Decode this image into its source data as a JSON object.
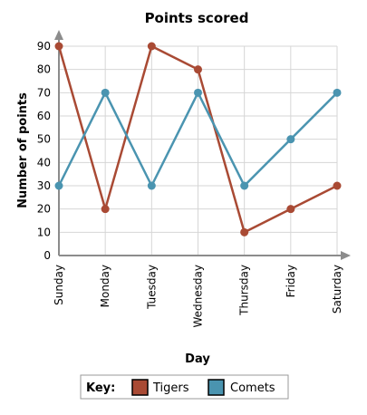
{
  "chart_data": {
    "type": "line",
    "title": "Points scored",
    "xlabel": "Day",
    "ylabel": "Number of points",
    "categories": [
      "Sunday",
      "Monday",
      "Tuesday",
      "Wednesday",
      "Thursday",
      "Friday",
      "Saturday"
    ],
    "y_ticks": [
      "0",
      "10",
      "20",
      "30",
      "40",
      "50",
      "60",
      "70",
      "80",
      "90"
    ],
    "ylim": [
      0,
      90
    ],
    "grid": true,
    "legend_position": "bottom",
    "legend_title": "Key:",
    "series": [
      {
        "name": "Tigers",
        "color": "#a94a34",
        "values": [
          90,
          20,
          90,
          80,
          10,
          20,
          30
        ]
      },
      {
        "name": "Comets",
        "color": "#4a94b0",
        "values": [
          30,
          70,
          30,
          70,
          30,
          50,
          70
        ]
      }
    ]
  }
}
